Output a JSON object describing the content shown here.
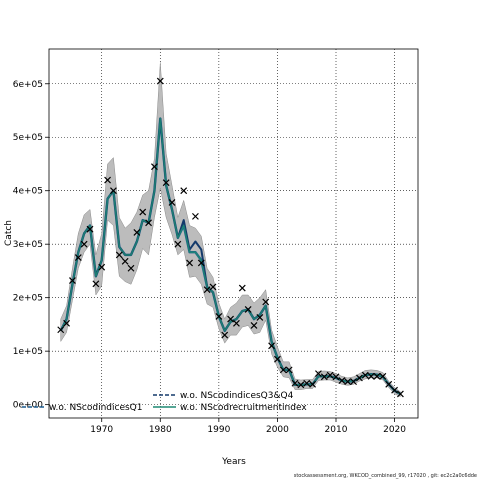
{
  "chart_data": {
    "type": "line",
    "xlabel": "Years",
    "ylabel": "Catch",
    "xlim": [
      1961,
      2024
    ],
    "ylim": [
      -25000,
      665000
    ],
    "xticks": [
      1970,
      1980,
      1990,
      2000,
      2010,
      2020
    ],
    "xtick_labels": [
      "1970",
      "1980",
      "1990",
      "2000",
      "2010",
      "2020"
    ],
    "yticks": [
      0,
      100000,
      200000,
      300000,
      400000,
      500000,
      600000
    ],
    "ytick_labels": [
      "0e+00",
      "1e+05",
      "2e+05",
      "3e+05",
      "4e+05",
      "5e+05",
      "6e+05"
    ],
    "grid": "dotted",
    "legend_position": "bottom-center",
    "legend_items": [
      {
        "label": "w.o. NScodindicesQ1",
        "color": "#1a5c90",
        "dashed": true
      },
      {
        "label": "w.o. NScodindicesQ3&Q4",
        "color": "#143a6b",
        "dashed": true
      },
      {
        "label": "w.o. NScodrecruitmentindex",
        "color": "#1f8a73",
        "dashed": false
      }
    ],
    "years": [
      1963,
      1964,
      1965,
      1966,
      1967,
      1968,
      1969,
      1970,
      1971,
      1972,
      1973,
      1974,
      1975,
      1976,
      1977,
      1978,
      1979,
      1980,
      1981,
      1982,
      1983,
      1984,
      1985,
      1986,
      1987,
      1988,
      1989,
      1990,
      1991,
      1992,
      1993,
      1994,
      1995,
      1996,
      1997,
      1998,
      1999,
      2000,
      2001,
      2002,
      2003,
      2004,
      2005,
      2006,
      2007,
      2008,
      2009,
      2010,
      2011,
      2012,
      2013,
      2014,
      2015,
      2016,
      2017,
      2018,
      2019,
      2020,
      2021
    ],
    "observed": [
      140000,
      152000,
      232000,
      275000,
      300000,
      328000,
      226000,
      257000,
      420000,
      400000,
      280000,
      268000,
      255000,
      322000,
      360000,
      340000,
      445000,
      605000,
      415000,
      378000,
      300000,
      400000,
      265000,
      352000,
      265000,
      215000,
      220000,
      165000,
      130000,
      160000,
      152000,
      218000,
      178000,
      148000,
      163000,
      192000,
      110000,
      85000,
      65000,
      65000,
      40000,
      37000,
      40000,
      38000,
      58000,
      52000,
      55000,
      52000,
      45000,
      43000,
      43000,
      50000,
      55000,
      53000,
      53000,
      53000,
      38000,
      27000,
      20000
    ],
    "estimate_upper": [
      160000,
      185000,
      255000,
      320000,
      355000,
      365000,
      280000,
      320000,
      450000,
      462000,
      350000,
      330000,
      340000,
      360000,
      392000,
      400000,
      460000,
      640000,
      470000,
      410000,
      350000,
      382000,
      335000,
      330000,
      315000,
      255000,
      238000,
      190000,
      160000,
      182000,
      190000,
      205000,
      205000,
      190000,
      200000,
      215000,
      140000,
      108000,
      80000,
      80000,
      48000,
      46000,
      47000,
      47000,
      62000,
      63000,
      62000,
      58000,
      53000,
      50000,
      52000,
      58000,
      64000,
      65000,
      64000,
      60000,
      44000,
      32000,
      24000
    ],
    "estimate_lower": [
      118000,
      135000,
      195000,
      255000,
      285000,
      300000,
      205000,
      222000,
      345000,
      335000,
      240000,
      230000,
      225000,
      252000,
      292000,
      280000,
      350000,
      405000,
      350000,
      318000,
      280000,
      290000,
      238000,
      240000,
      225000,
      188000,
      182000,
      142000,
      115000,
      130000,
      130000,
      145000,
      148000,
      132000,
      135000,
      158000,
      95000,
      70000,
      52000,
      50000,
      28000,
      28000,
      30000,
      30000,
      45000,
      46000,
      46000,
      42000,
      38000,
      36000,
      38000,
      44000,
      48000,
      50000,
      50000,
      46000,
      32000,
      20000,
      15000
    ],
    "series": [
      {
        "name": "w.o. NScodindicesQ1",
        "color": "#1a5c90",
        "values": [
          138000,
          160000,
          225000,
          285000,
          320000,
          335000,
          240000,
          270000,
          385000,
          400000,
          295000,
          280000,
          280000,
          305000,
          345000,
          340000,
          400000,
          535000,
          410000,
          365000,
          312000,
          335000,
          285000,
          285000,
          270000,
          220000,
          210000,
          165000,
          138000,
          155000,
          160000,
          175000,
          178000,
          160000,
          168000,
          185000,
          118000,
          88000,
          65000,
          65000,
          37000,
          37000,
          38000,
          38000,
          53000,
          53000,
          53000,
          50000,
          45000,
          43000,
          44000,
          50000,
          55000,
          57000,
          56000,
          52000,
          38000,
          26000,
          20000
        ]
      },
      {
        "name": "w.o. NScodindicesQ3&Q4",
        "color": "#143a6b",
        "values": [
          138000,
          160000,
          225000,
          285000,
          320000,
          335000,
          240000,
          270000,
          385000,
          400000,
          295000,
          280000,
          280000,
          305000,
          345000,
          340000,
          400000,
          535000,
          410000,
          365000,
          312000,
          345000,
          290000,
          305000,
          290000,
          220000,
          210000,
          165000,
          138000,
          155000,
          160000,
          175000,
          178000,
          160000,
          168000,
          185000,
          118000,
          88000,
          65000,
          65000,
          37000,
          37000,
          38000,
          38000,
          53000,
          53000,
          53000,
          50000,
          45000,
          43000,
          44000,
          50000,
          55000,
          57000,
          56000,
          52000,
          38000,
          26000,
          20000
        ]
      },
      {
        "name": "w.o. NScodrecruitmentindex",
        "color": "#1f8a73",
        "values": [
          138000,
          160000,
          225000,
          285000,
          320000,
          335000,
          240000,
          270000,
          385000,
          400000,
          295000,
          280000,
          280000,
          305000,
          345000,
          340000,
          400000,
          535000,
          410000,
          365000,
          312000,
          335000,
          285000,
          285000,
          270000,
          220000,
          210000,
          165000,
          138000,
          155000,
          160000,
          175000,
          178000,
          160000,
          168000,
          185000,
          118000,
          88000,
          65000,
          65000,
          37000,
          37000,
          38000,
          38000,
          53000,
          53000,
          53000,
          50000,
          45000,
          43000,
          44000,
          50000,
          55000,
          57000,
          56000,
          52000,
          38000,
          26000,
          20000
        ]
      }
    ]
  },
  "footer_text": "stockassessment.org,  WKCOD_combined_99,  r17020 ,  git:  ec2c2a0c6dde"
}
